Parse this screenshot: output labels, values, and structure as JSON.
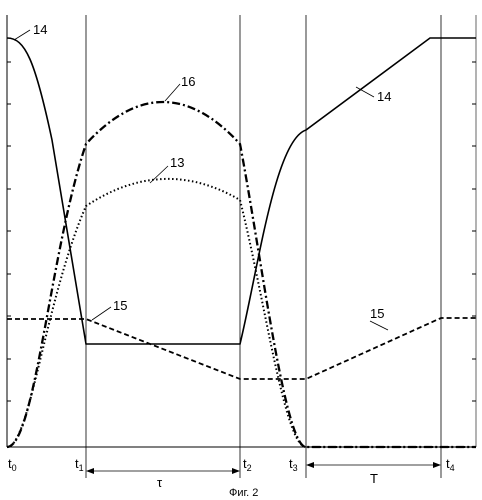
{
  "figure": {
    "caption": "Фиг. 2",
    "time_marks": [
      {
        "base": "t",
        "sub": "0"
      },
      {
        "base": "t",
        "sub": "1"
      },
      {
        "base": "t",
        "sub": "2"
      },
      {
        "base": "t",
        "sub": "3"
      },
      {
        "base": "t",
        "sub": "4"
      }
    ],
    "intervals": [
      {
        "label": "τ",
        "from": "t1",
        "to": "t2"
      },
      {
        "label": "T",
        "from": "t3",
        "to": "t4"
      }
    ],
    "curve_labels": [
      {
        "id": "14a",
        "text": "14",
        "curve": "14"
      },
      {
        "id": "14b",
        "text": "14",
        "curve": "14"
      },
      {
        "id": "16",
        "text": "16",
        "curve": "16"
      },
      {
        "id": "13",
        "text": "13",
        "curve": "13"
      },
      {
        "id": "15a",
        "text": "15",
        "curve": "15"
      },
      {
        "id": "15b",
        "text": "15",
        "curve": "15"
      }
    ],
    "curves": [
      {
        "id": "14",
        "line_style": "solid"
      },
      {
        "id": "16",
        "line_style": "dash-dot"
      },
      {
        "id": "13",
        "line_style": "dotted"
      },
      {
        "id": "15",
        "line_style": "dashed"
      }
    ]
  }
}
